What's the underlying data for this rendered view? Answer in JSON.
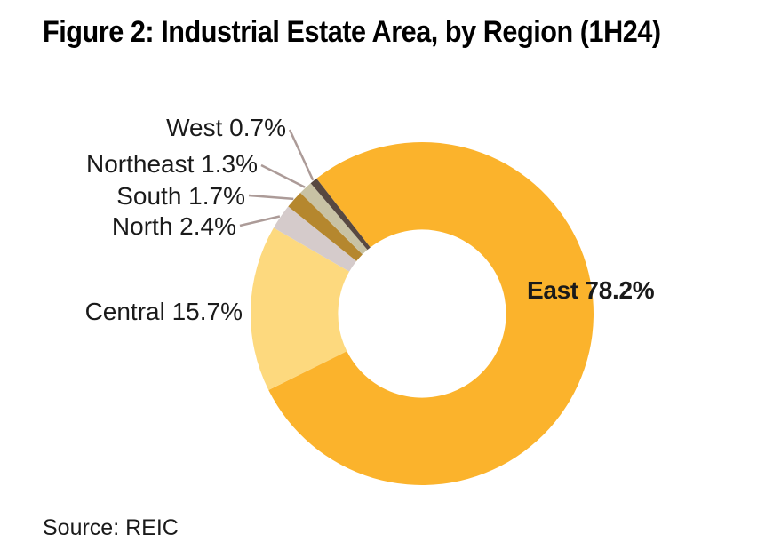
{
  "title": "Figure 2: Industrial Estate Area, by Region (1H24)",
  "source": "Source: REIC",
  "chart_data": {
    "type": "pie",
    "subtype": "donut",
    "title": "Figure 2: Industrial Estate Area, by Region (1H24)",
    "units": "percent",
    "series": [
      {
        "name": "East",
        "value": 78.2,
        "label": "East 78.2%",
        "color": "#FBB32C"
      },
      {
        "name": "Central",
        "value": 15.7,
        "label": "Central 15.7%",
        "color": "#FDD97E"
      },
      {
        "name": "North",
        "value": 2.4,
        "label": "North 2.4%",
        "color": "#D5CBCB"
      },
      {
        "name": "South",
        "value": 1.7,
        "label": "South 1.7%",
        "color": "#B5872E"
      },
      {
        "name": "Northeast",
        "value": 1.3,
        "label": "Northeast 1.3%",
        "color": "#C8C2A4"
      },
      {
        "name": "West",
        "value": 0.7,
        "label": "West 0.7%",
        "color": "#574841"
      }
    ],
    "start_angle_deg": -38,
    "direction": "clockwise",
    "inner_radius_ratio": 0.49,
    "leader_line_color": "#AC9B98",
    "legend": "none",
    "label_placement": "outside-with-leader-lines"
  }
}
